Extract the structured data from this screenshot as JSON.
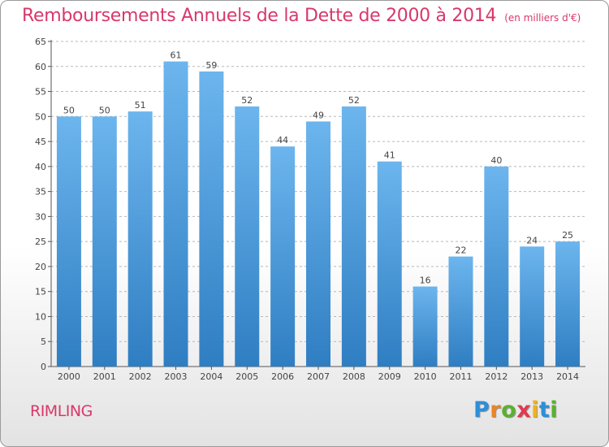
{
  "header": {
    "title": "Remboursements Annuels de la Dette de 2000 à 2014",
    "unit": "(en milliers d'€)"
  },
  "footer": {
    "commune": "RIMLING",
    "logo": [
      "P",
      "r",
      "o",
      "x",
      "i",
      "t",
      "i"
    ],
    "logo_colors": [
      "#2d8fd9",
      "#e8862a",
      "#5bb030",
      "#e03b50",
      "#f0b21c",
      "#2d8fd9",
      "#5bb030"
    ]
  },
  "colors": {
    "bar_top": "#6cb5ee",
    "bar_bottom": "#2f7ec2",
    "grid": "#b8b8b8",
    "axis": "#555555"
  },
  "chart_data": {
    "type": "bar",
    "title": "Remboursements Annuels de la Dette de 2000 à 2014",
    "subtitle": "(en milliers d'€)",
    "xlabel": "",
    "ylabel": "",
    "categories": [
      "2000",
      "2001",
      "2002",
      "2003",
      "2004",
      "2005",
      "2006",
      "2007",
      "2008",
      "2009",
      "2010",
      "2011",
      "2012",
      "2013",
      "2014"
    ],
    "values": [
      50,
      50,
      51,
      61,
      59,
      52,
      44,
      49,
      52,
      41,
      16,
      22,
      40,
      24,
      25
    ],
    "ylim": [
      0,
      65
    ],
    "yticks": [
      0,
      5,
      10,
      15,
      20,
      25,
      30,
      35,
      40,
      45,
      50,
      55,
      60,
      65
    ],
    "grid": true,
    "grid_style": "dashed horizontal"
  }
}
